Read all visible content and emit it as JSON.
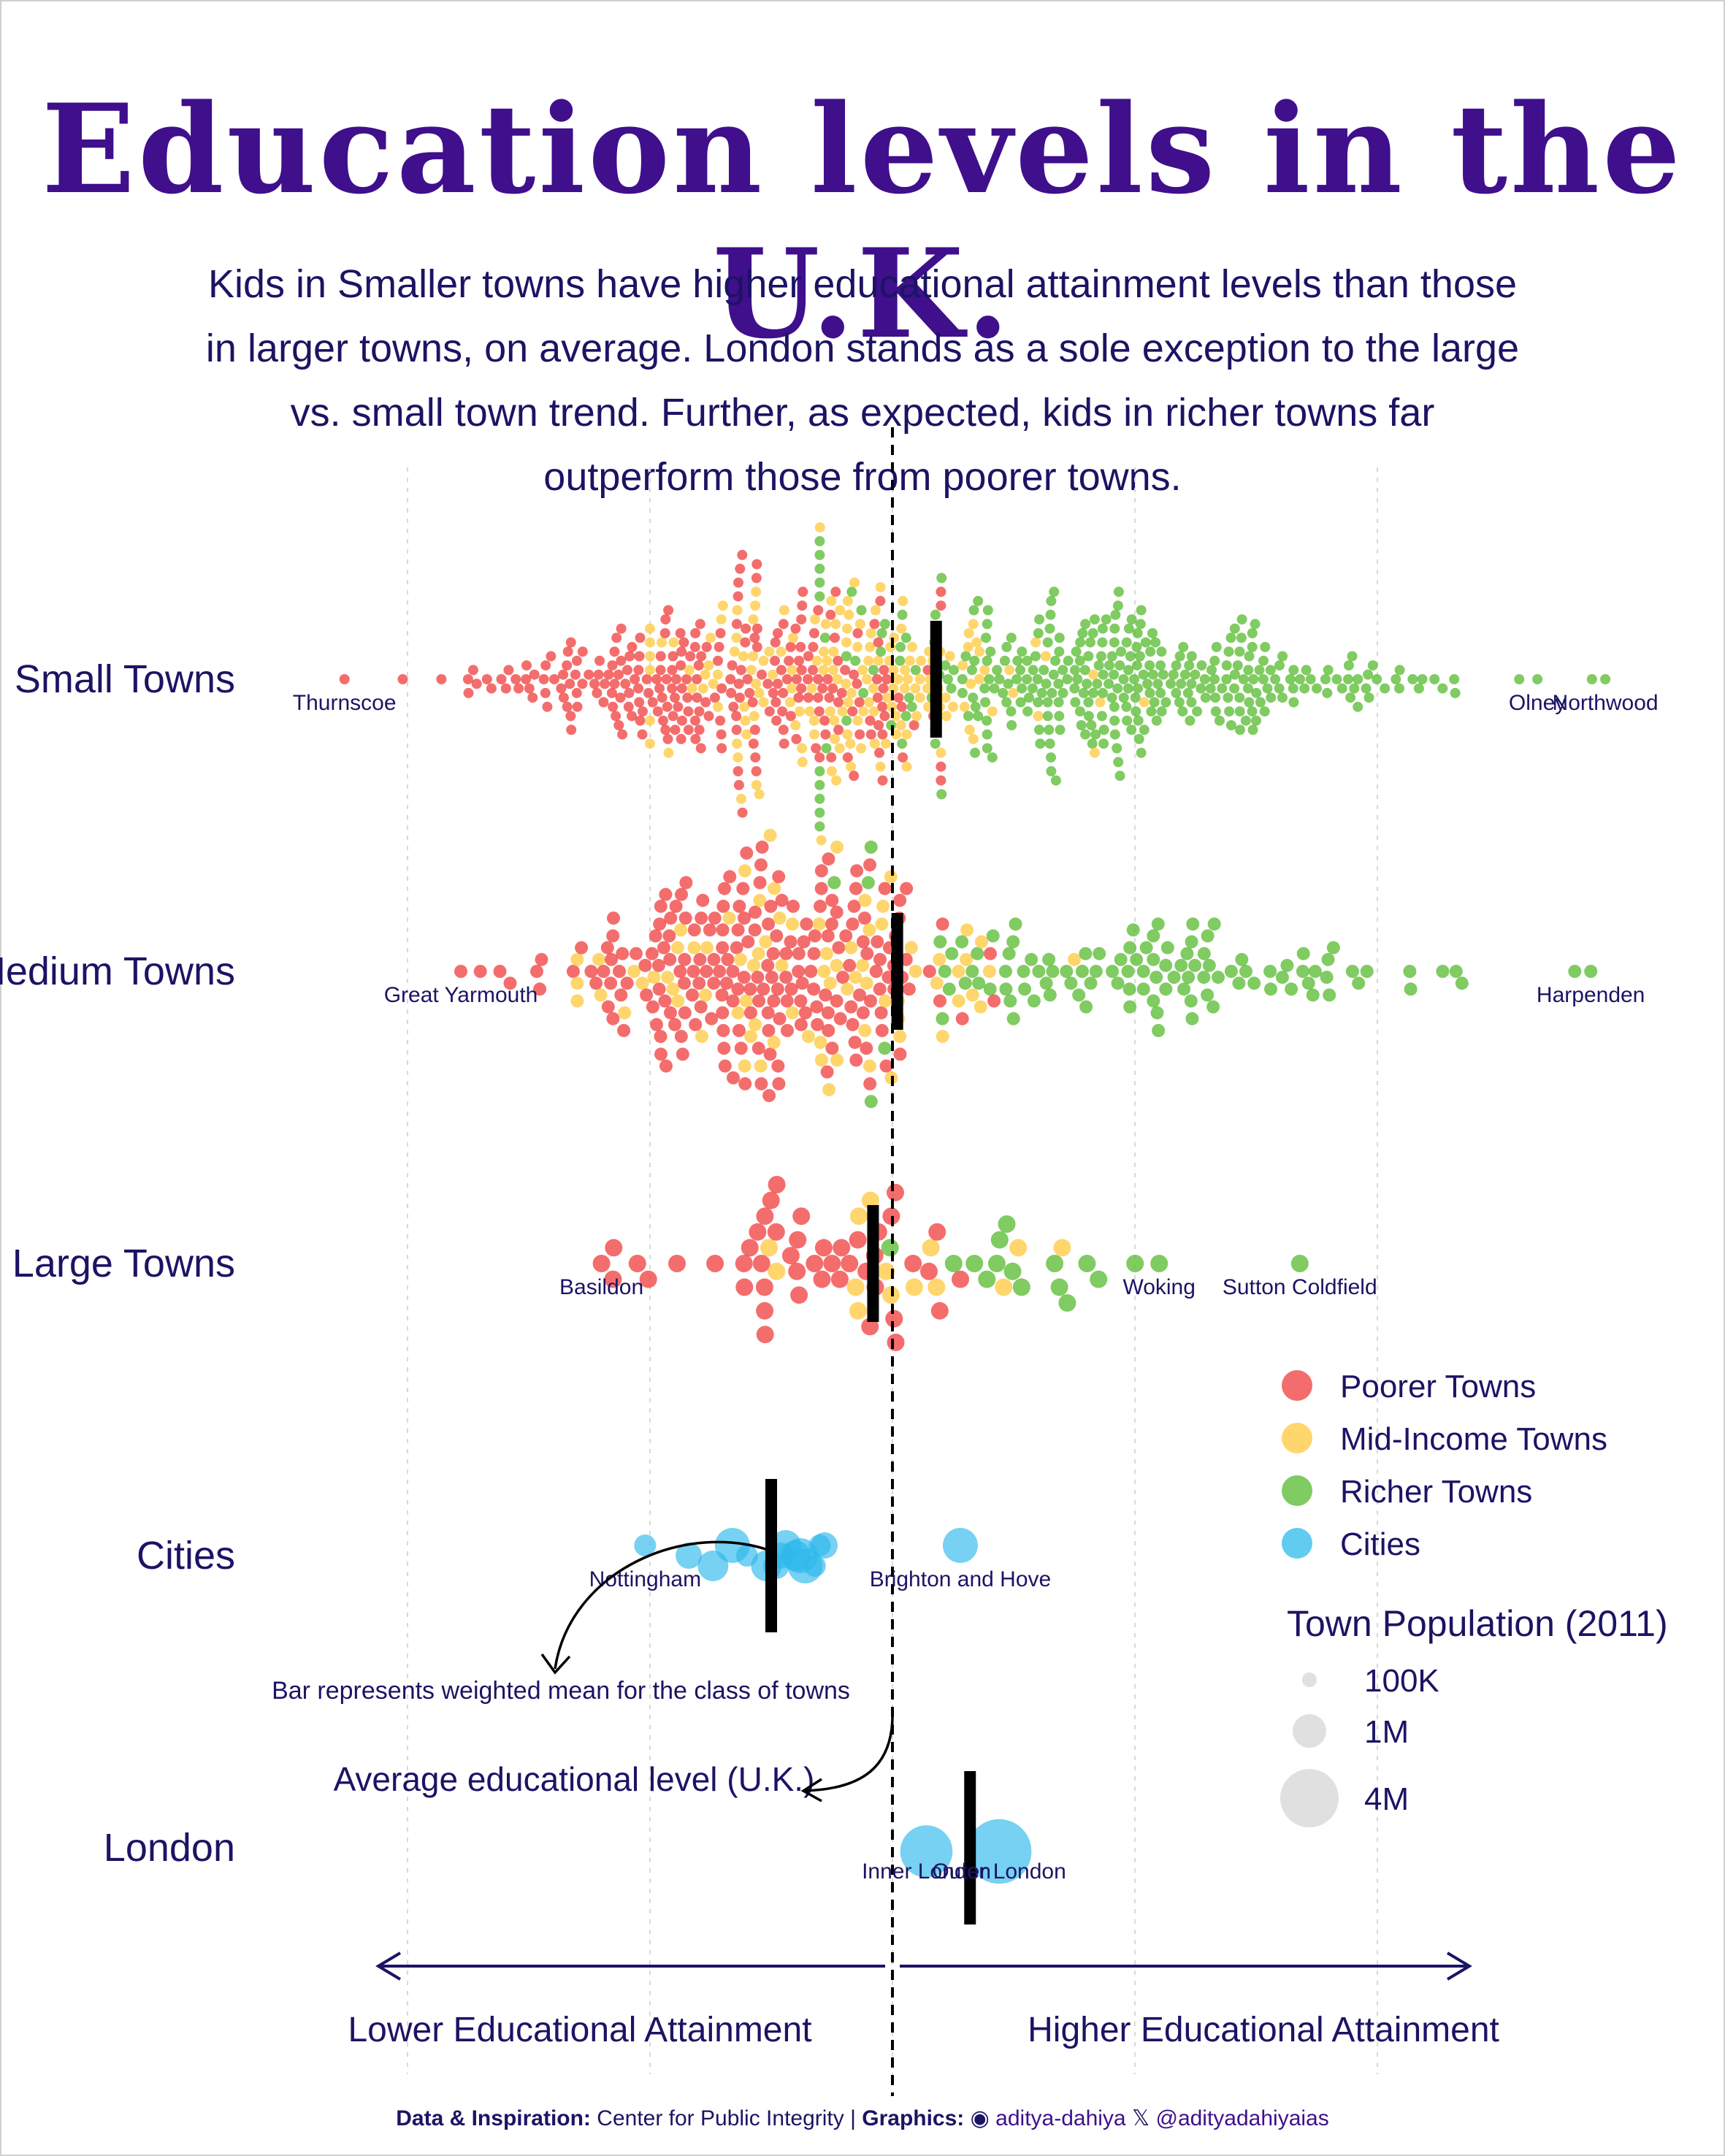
{
  "title": "Education levels in the U.K.",
  "subtitle": "Kids in Smaller towns have higher educational attainment levels than those in larger towns, on average. London stands as a sole exception to the large vs. small town trend. Further, as expected, kids in richer towns far outperform those from poorer towns.",
  "colors": {
    "poorer": "#f03c3c",
    "mid": "#ffc83c",
    "richer": "#55b92d",
    "cities": "#2db9eb",
    "text": "#1b1464",
    "title": "#3f0f8c",
    "mean_bar": "#000000"
  },
  "chart_data": {
    "type": "scatter",
    "subtype": "beeswarm",
    "categories": [
      "Small Towns",
      "Medium Towns",
      "Large Towns",
      "Cities",
      "London"
    ],
    "x_range": [
      -12,
      12
    ],
    "grid": "vertical dotted",
    "uk_average": 0,
    "means": {
      "Small Towns": 0.9,
      "Medium Towns": 0.1,
      "Large Towns": -0.4,
      "Cities": -2.5,
      "London": 1.6
    },
    "labelled_towns": [
      {
        "name": "Thurnscoe",
        "category": "Small Towns",
        "x": -11.3,
        "group": "Poorer Towns"
      },
      {
        "name": "Olney",
        "category": "Small Towns",
        "x": 13.3,
        "group": "Richer Towns"
      },
      {
        "name": "Northwood",
        "category": "Small Towns",
        "x": 14.7,
        "group": "Richer Towns"
      },
      {
        "name": "Great Yarmouth",
        "category": "Medium Towns",
        "x": -8.9,
        "group": "Poorer Towns"
      },
      {
        "name": "Harpenden",
        "category": "Medium Towns",
        "x": 14.4,
        "group": "Richer Towns"
      },
      {
        "name": "Basildon",
        "category": "Large Towns",
        "x": -6.0,
        "group": "Poorer Towns"
      },
      {
        "name": "Woking",
        "category": "Large Towns",
        "x": 5.5,
        "group": "Richer Towns"
      },
      {
        "name": "Sutton Coldfield",
        "category": "Large Towns",
        "x": 8.4,
        "group": "Richer Towns"
      },
      {
        "name": "Nottingham",
        "category": "Cities",
        "x": -5.1,
        "group": "Cities"
      },
      {
        "name": "Brighton and Hove",
        "category": "Cities",
        "x": 1.4,
        "group": "Cities"
      },
      {
        "name": "Inner London",
        "category": "London",
        "x": 0.7,
        "group": "Cities"
      },
      {
        "name": "Outer London",
        "category": "London",
        "x": 2.2,
        "group": "Cities"
      }
    ],
    "series_profiles": [
      {
        "category": "Small Towns",
        "group": "Poorer Towns",
        "n": 260,
        "mean": -3.8,
        "sd": 2.4,
        "min": -11.8,
        "max": 1.0
      },
      {
        "category": "Small Towns",
        "group": "Mid-Income Towns",
        "n": 170,
        "mean": -0.8,
        "sd": 2.2,
        "min": -5.0,
        "max": 8.8
      },
      {
        "category": "Small Towns",
        "group": "Richer Towns",
        "n": 340,
        "mean": 4.6,
        "sd": 3.0,
        "min": -1.5,
        "max": 15.0
      },
      {
        "category": "Medium Towns",
        "group": "Poorer Towns",
        "n": 210,
        "mean": -2.8,
        "sd": 2.0,
        "min": -9.0,
        "max": 2.2
      },
      {
        "category": "Medium Towns",
        "group": "Mid-Income Towns",
        "n": 80,
        "mean": -1.5,
        "sd": 2.2,
        "min": -6.5,
        "max": 6.0
      },
      {
        "category": "Medium Towns",
        "group": "Richer Towns",
        "n": 110,
        "mean": 4.6,
        "sd": 3.0,
        "min": -1.2,
        "max": 14.4
      },
      {
        "category": "Large Towns",
        "group": "Poorer Towns",
        "n": 45,
        "mean": -2.0,
        "sd": 1.8,
        "min": -6.0,
        "max": 2.3
      },
      {
        "category": "Large Towns",
        "group": "Mid-Income Towns",
        "n": 14,
        "mean": 0.0,
        "sd": 2.6,
        "min": -4.5,
        "max": 3.5
      },
      {
        "category": "Large Towns",
        "group": "Richer Towns",
        "n": 15,
        "mean": 2.8,
        "sd": 2.6,
        "min": -2.5,
        "max": 8.8
      }
    ],
    "cities": [
      -5.1,
      -4.2,
      -3.7,
      -3.3,
      -3.0,
      -2.4,
      -2.2,
      -1.9,
      -1.6,
      -1.4,
      -2.0,
      -1.8,
      -1.5,
      -2.3,
      -2.6,
      1.4
    ],
    "london": [
      {
        "name": "Inner London",
        "x": 0.7,
        "population": 3200000
      },
      {
        "name": "Outer London",
        "x": 2.2,
        "population": 4900000
      }
    ],
    "legend": {
      "placement": "right",
      "items": [
        "Poorer Towns",
        "Mid-Income Towns",
        "Richer Towns",
        "Cities"
      ],
      "size_title": "Town Population (2011)",
      "size_items": [
        "100K",
        "1M",
        "4M"
      ]
    },
    "annotations": {
      "mean_bar": "Bar represents weighted mean for the class of towns",
      "uk_average": "Average educational level (U.K.)",
      "axis_low": "Lower Educational Attainment",
      "axis_high": "Higher Educational Attainment"
    }
  },
  "footer": {
    "data_label": "Data & Inspiration:",
    "data_source": "Center for Public Integrity",
    "sep": "|",
    "graphics_label": "Graphics:",
    "github": "aditya-dahiya",
    "x_handle": "@adityadahiyaias"
  }
}
